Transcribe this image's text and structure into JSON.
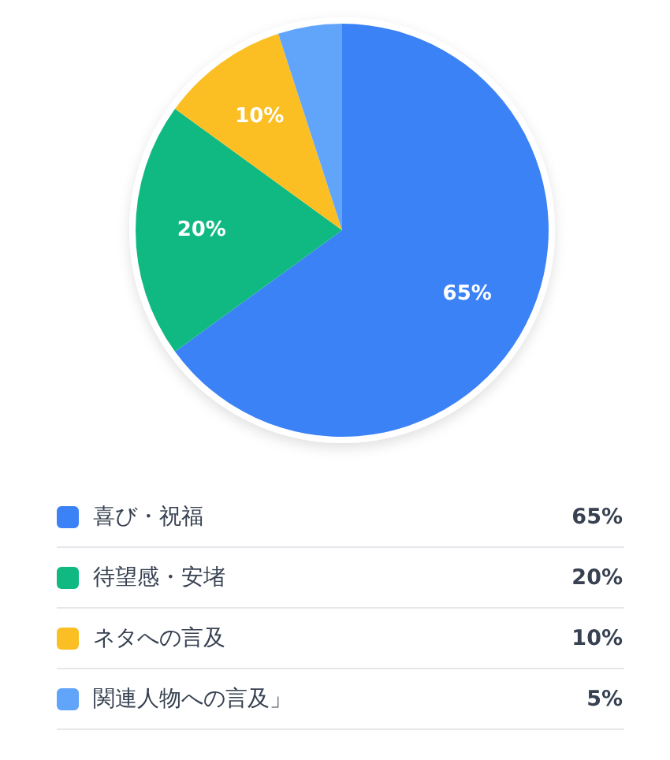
{
  "chart_data": {
    "type": "pie",
    "categories": [
      "喜び・祝福",
      "待望感・安堵",
      "ネタへの言及",
      "関連人物への言及」"
    ],
    "values": [
      65,
      20,
      10,
      5
    ],
    "colors": [
      "#3b82f6",
      "#10b981",
      "#fbbf24",
      "#60a5fa"
    ],
    "value_labels": [
      "65%",
      "20%",
      "10%",
      "5%"
    ],
    "legend": "bottom"
  }
}
